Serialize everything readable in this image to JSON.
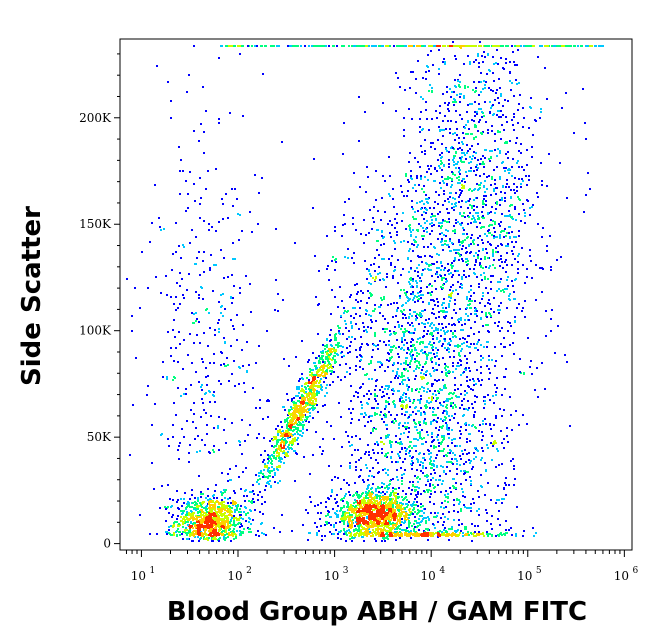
{
  "chart_data": {
    "type": "scatter",
    "title": "",
    "xlabel": "Blood Group ABH / GAM FITC",
    "ylabel": "Side Scatter",
    "x_scale": "log",
    "x_range": [
      6,
      1200000
    ],
    "y_range": [
      -3000,
      237000
    ],
    "x_ticks": [
      {
        "value": 10,
        "base": "10",
        "exp": "1"
      },
      {
        "value": 100,
        "base": "10",
        "exp": "2"
      },
      {
        "value": 1000,
        "base": "10",
        "exp": "3"
      },
      {
        "value": 10000,
        "base": "10",
        "exp": "4"
      },
      {
        "value": 100000,
        "base": "10",
        "exp": "5"
      },
      {
        "value": 1000000,
        "base": "10",
        "exp": "6"
      }
    ],
    "y_ticks": [
      {
        "value": 0,
        "label": "0"
      },
      {
        "value": 50000,
        "label": "50K"
      },
      {
        "value": 100000,
        "label": "100K"
      },
      {
        "value": 150000,
        "label": "150K"
      },
      {
        "value": 200000,
        "label": "200K"
      }
    ],
    "grid": false,
    "legend": "none",
    "color_scale": [
      "#0000ff",
      "#00c8ff",
      "#00ff80",
      "#c8ff00",
      "#ffd000",
      "#ff3000"
    ],
    "populations": [
      {
        "x_center": 50,
        "y_center": 11000,
        "x_log_sd": 0.18,
        "y_sd": 6000,
        "count": 900
      },
      {
        "x_center": 450,
        "y_center": 65000,
        "x_log_sd": 0.1,
        "y_sd": 17000,
        "count": 900,
        "slope": 0.9
      },
      {
        "x_center": 2500,
        "y_center": 14000,
        "x_log_sd": 0.22,
        "y_sd": 5000,
        "count": 1100
      },
      {
        "x_center": 8000,
        "y_center": 70000,
        "x_log_sd": 0.45,
        "y_sd": 55000,
        "count": 2600
      },
      {
        "x_center": 30000,
        "y_center": 170000,
        "x_log_sd": 0.35,
        "y_sd": 40000,
        "count": 1100
      },
      {
        "x_center": 50,
        "y_center": 90000,
        "x_log_sd": 0.35,
        "y_sd": 60000,
        "count": 450
      }
    ],
    "saturation_line": {
      "y": 234000,
      "x_start": 60,
      "x_end": 600000
    }
  }
}
